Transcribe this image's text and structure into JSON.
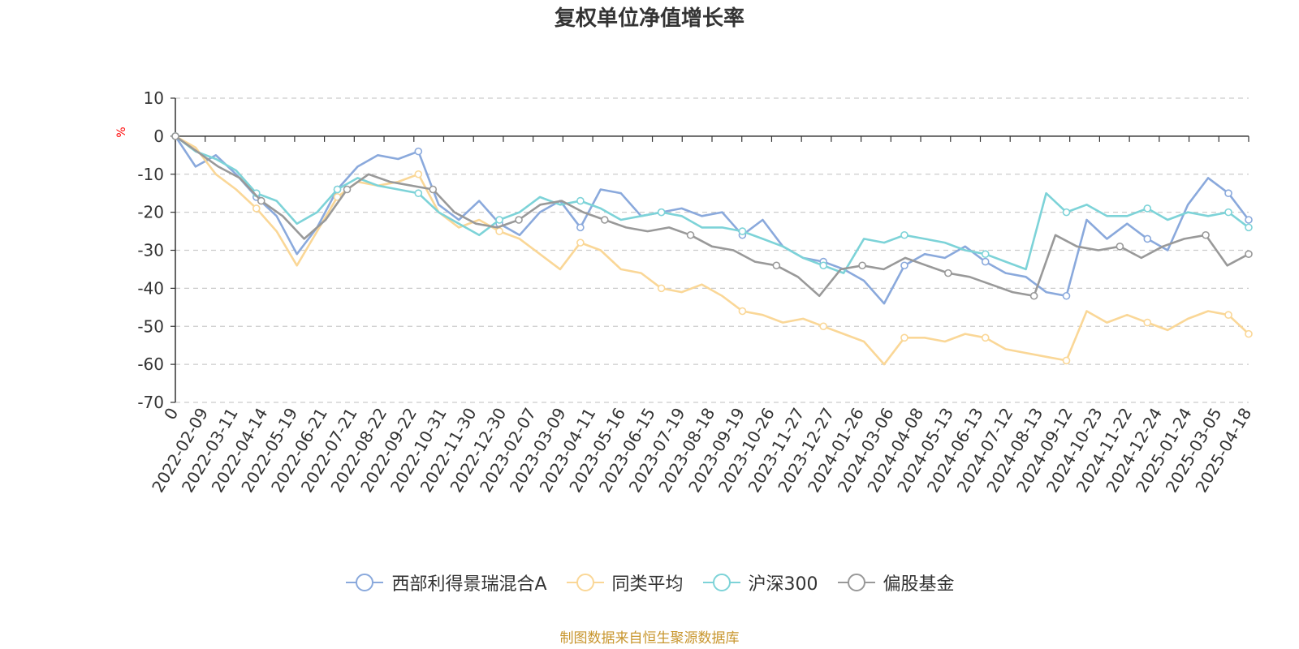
{
  "title": "复权单位净值增长率",
  "source_note": "制图数据来自恒生聚源数据库",
  "chart_data": {
    "type": "line",
    "title": "复权单位净值增长率",
    "ylabel": "%",
    "ylim": [
      -70,
      10
    ],
    "yticks": [
      10,
      0,
      -10,
      -20,
      -30,
      -40,
      -50,
      -60,
      -70
    ],
    "grid": true,
    "legend_position": "bottom",
    "x_tick_labels": [
      "0",
      "2022-02-09",
      "2022-03-11",
      "2022-04-14",
      "2022-05-19",
      "2022-06-21",
      "2022-07-21",
      "2022-08-22",
      "2022-09-22",
      "2022-10-31",
      "2022-11-30",
      "2022-12-30",
      "2023-02-07",
      "2023-03-09",
      "2023-04-11",
      "2023-05-16",
      "2023-06-15",
      "2023-07-19",
      "2023-08-18",
      "2023-09-19",
      "2023-10-26",
      "2023-11-27",
      "2023-12-27",
      "2024-01-26",
      "2024-03-06",
      "2024-04-08",
      "2024-05-13",
      "2024-06-13",
      "2024-07-12",
      "2024-08-13",
      "2024-09-12",
      "2024-10-23",
      "2024-11-22",
      "2024-12-24",
      "2025-01-24",
      "2025-03-05",
      "2025-04-18"
    ],
    "series": [
      {
        "name": "西部利得景瑞混合A",
        "color": "#8aa9dc",
        "values": [
          0,
          -8,
          -5,
          -10,
          -16,
          -21,
          -31,
          -24,
          -14,
          -8,
          -5,
          -6,
          -4,
          -18,
          -22,
          -17,
          -23,
          -26,
          -20,
          -17,
          -24,
          -14,
          -15,
          -21,
          -20,
          -19,
          -21,
          -20,
          -26,
          -22,
          -29,
          -32,
          -33,
          -35,
          -38,
          -44,
          -34,
          -31,
          -32,
          -29,
          -33,
          -36,
          -37,
          -41,
          -42,
          -22,
          -27,
          -23,
          -27,
          -30,
          -18,
          -11,
          -15,
          -22
        ]
      },
      {
        "name": "同类平均",
        "color": "#fad797",
        "values": [
          0,
          -3,
          -10,
          -14,
          -19,
          -25,
          -34,
          -25,
          -16,
          -12,
          -13,
          -12,
          -10,
          -20,
          -24,
          -22,
          -25,
          -27,
          -31,
          -35,
          -28,
          -30,
          -35,
          -36,
          -40,
          -41,
          -39,
          -42,
          -46,
          -47,
          -49,
          -48,
          -50,
          -52,
          -54,
          -60,
          -53,
          -53,
          -54,
          -52,
          -53,
          -56,
          -57,
          -58,
          -59,
          -46,
          -49,
          -47,
          -49,
          -51,
          -48,
          -46,
          -47,
          -52
        ]
      },
      {
        "name": "沪深300",
        "color": "#7dd3d8",
        "values": [
          0,
          -4,
          -6,
          -9,
          -15,
          -17,
          -23,
          -20,
          -14,
          -11,
          -13,
          -14,
          -15,
          -20,
          -23,
          -26,
          -22,
          -20,
          -16,
          -18,
          -17,
          -19,
          -22,
          -21,
          -20,
          -21,
          -24,
          -24,
          -25,
          -27,
          -29,
          -32,
          -34,
          -36,
          -27,
          -28,
          -26,
          -27,
          -28,
          -30,
          -31,
          -33,
          -35,
          -15,
          -20,
          -18,
          -21,
          -21,
          -19,
          -22,
          -20,
          -21,
          -20,
          -24
        ]
      },
      {
        "name": "偏股基金",
        "color": "#999999",
        "values": [
          0,
          -4,
          -8,
          -11,
          -17,
          -21,
          -27,
          -22,
          -14,
          -10,
          -12,
          -13,
          -14,
          -20,
          -23,
          -24,
          -22,
          -18,
          -17,
          -20,
          -22,
          -24,
          -25,
          -24,
          -26,
          -29,
          -30,
          -33,
          -34,
          -37,
          -42,
          -35,
          -34,
          -35,
          -32,
          -34,
          -36,
          -37,
          -39,
          -41,
          -42,
          -26,
          -29,
          -30,
          -29,
          -32,
          -29,
          -27,
          -26,
          -34,
          -31
        ]
      }
    ]
  },
  "legend": [
    {
      "label": "西部利得景瑞混合A",
      "color": "#8aa9dc"
    },
    {
      "label": "同类平均",
      "color": "#fad797"
    },
    {
      "label": "沪深300",
      "color": "#7dd3d8"
    },
    {
      "label": "偏股基金",
      "color": "#999999"
    }
  ]
}
